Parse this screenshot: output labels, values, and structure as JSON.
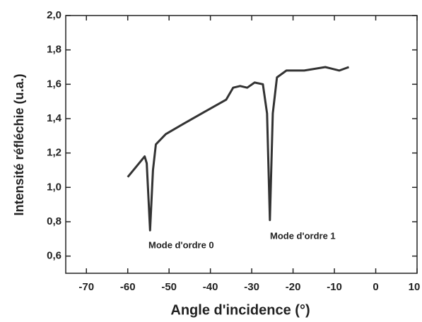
{
  "chart_data": {
    "type": "line",
    "xlabel": "Angle d'incidence (°)",
    "ylabel": "Intensité réfléchie (u.a.)",
    "annotations": [
      "Mode d'ordre 0",
      "Mode d'ordre 1"
    ],
    "color": "#333333",
    "x": [
      -60.0,
      -57.6,
      -55.9,
      -55.4,
      -54.6,
      -53.9,
      -53.2,
      -50.8,
      -46.5,
      -41.4,
      -36.2,
      -34.5,
      -32.8,
      -31.1,
      -29.3,
      -27.3,
      -26.3,
      -25.6,
      -24.9,
      -23.9,
      -21.6,
      -17.3,
      -12.2,
      -10.5,
      -8.8,
      -6.5
    ],
    "values": [
      1.06,
      1.13,
      1.18,
      1.14,
      0.75,
      1.1,
      1.25,
      1.31,
      1.37,
      1.44,
      1.51,
      1.58,
      1.59,
      1.58,
      1.61,
      1.6,
      1.43,
      0.81,
      1.43,
      1.64,
      1.68,
      1.68,
      1.7,
      1.69,
      1.68,
      1.7
    ],
    "xlim": [
      -75,
      10
    ],
    "xticks": [
      -70,
      -60,
      -50,
      -40,
      -30,
      -20,
      -10,
      0,
      10
    ],
    "ylim": [
      0.5,
      2.0
    ],
    "yticks": [
      {
        "value": 0.6,
        "label": "0,6"
      },
      {
        "value": 0.8,
        "label": "0,8"
      },
      {
        "value": 1.0,
        "label": "1,0"
      },
      {
        "value": 1.2,
        "label": "1,2"
      },
      {
        "value": 1.4,
        "label": "1,4"
      },
      {
        "value": 1.6,
        "label": "1,6"
      },
      {
        "value": 1.8,
        "label": "1,8"
      },
      {
        "value": 2.0,
        "label": "2,0"
      }
    ]
  }
}
